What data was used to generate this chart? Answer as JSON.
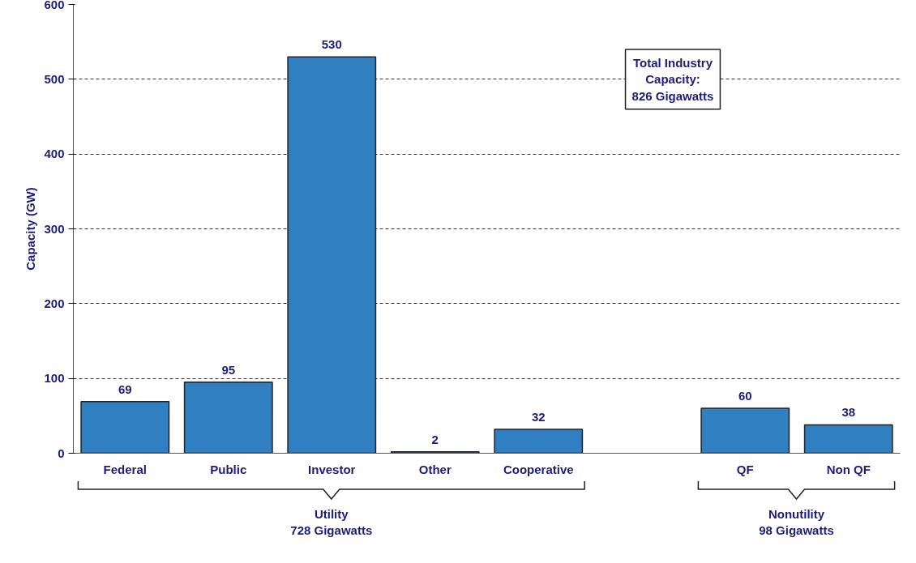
{
  "chart_data": {
    "type": "bar",
    "ylabel": "Capacity (GW)",
    "categories": [
      "Federal",
      "Public",
      "Investor",
      "Other",
      "Cooperative",
      null,
      "QF",
      "Non QF"
    ],
    "values": [
      69,
      95,
      530,
      2,
      32,
      null,
      60,
      38
    ],
    "color": "#2f7fc1",
    "ylim": [
      0,
      600
    ],
    "yticks": [
      0,
      100,
      200,
      300,
      400,
      500,
      600
    ],
    "grid": "y",
    "data_labels": true,
    "annotations": [
      "Total Industry\nCapacity:\n826 Gigawatts",
      "Utility\n728 Gigawatts",
      "Nonutility\n98 Gigawatts"
    ]
  }
}
